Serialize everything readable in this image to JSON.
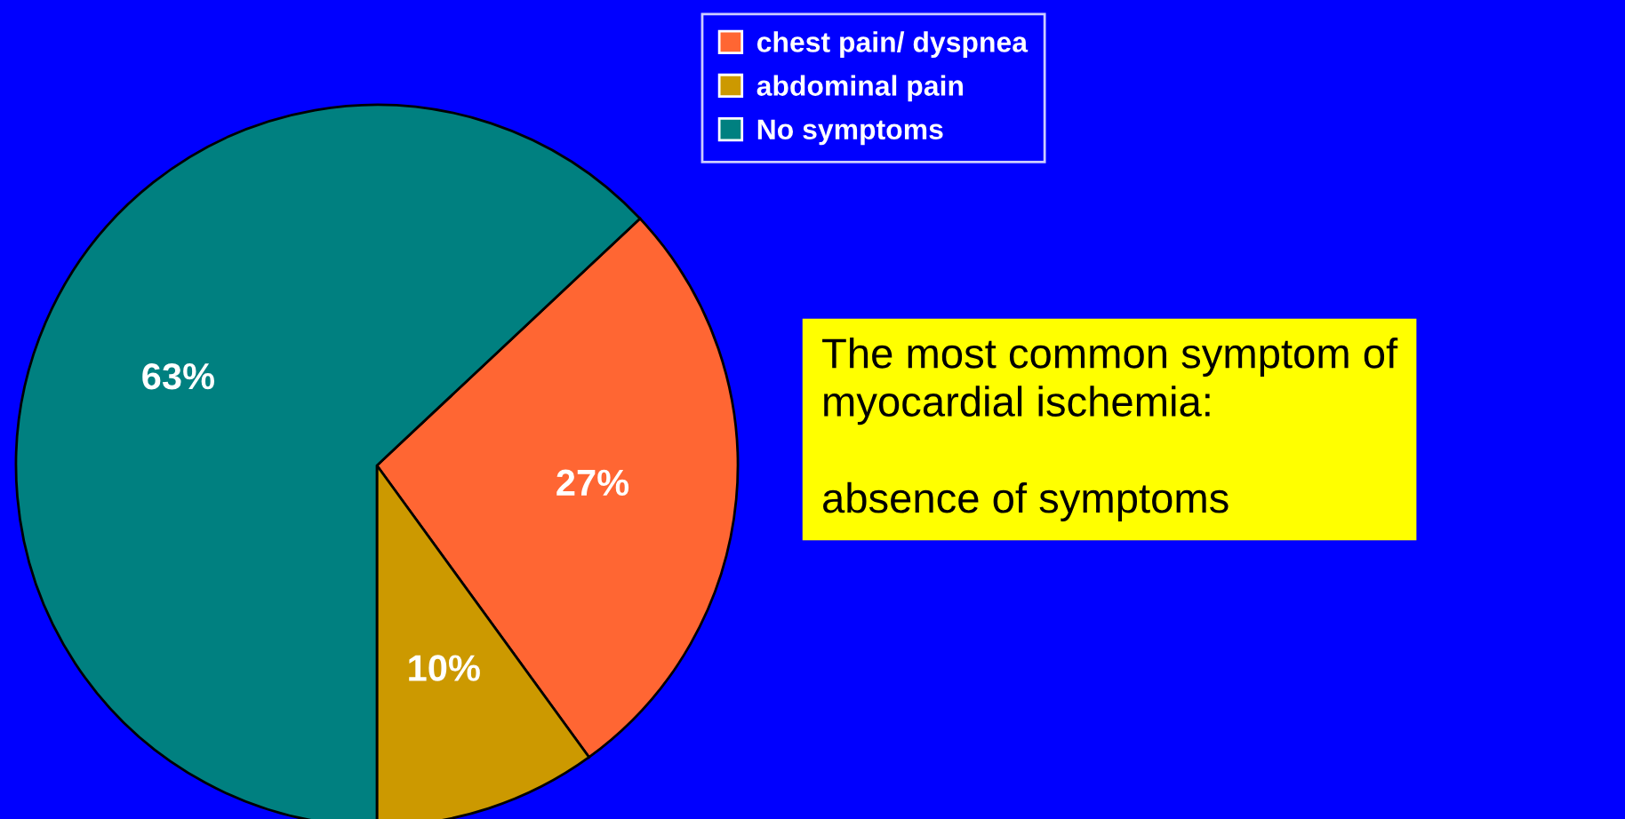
{
  "chart_data": {
    "type": "pie",
    "categories": [
      "chest pain/ dyspnea",
      "abdominal pain",
      "No symptoms"
    ],
    "values": [
      27,
      10,
      63
    ],
    "colors": [
      "#ff6633",
      "#cc9900",
      "#008080"
    ],
    "value_labels": [
      "27%",
      "10%",
      "63%"
    ],
    "legend": "top",
    "annotations": [
      "The most common symptom of\nmyocardial ischemia:\n\nabsence of symptoms"
    ]
  }
}
